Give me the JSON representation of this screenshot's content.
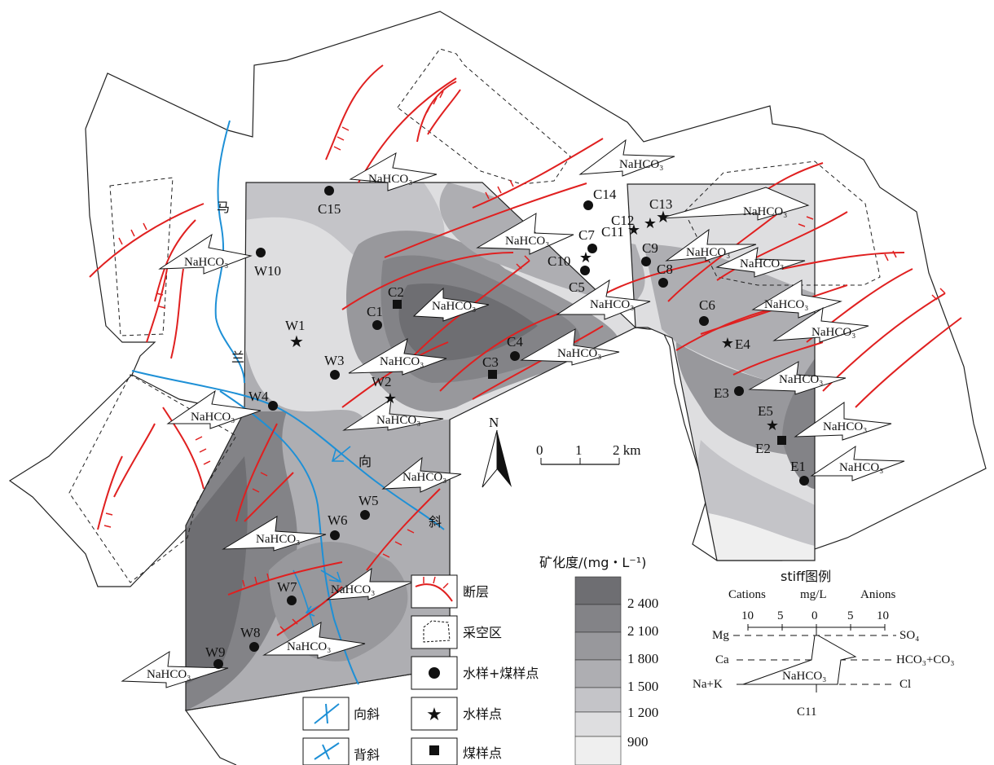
{
  "legend": {
    "fault": "断层",
    "goaf": "采空区",
    "water_coal": "水样+煤样点",
    "water": "水样点",
    "syncline": "向斜",
    "coal": "煤样点",
    "anticline": "背斜"
  },
  "colorbar": {
    "title": "矿化度/(mg・L⁻¹)",
    "ticks": [
      "2 400",
      "2 100",
      "1 800",
      "1 500",
      "1 200",
      "900"
    ],
    "colors": [
      "#6e6e72",
      "#838387",
      "#98989c",
      "#aeaeb2",
      "#c4c4c8",
      "#dedee0",
      "#efefef"
    ]
  },
  "scale": {
    "labels": [
      "0",
      "1",
      "2 km"
    ]
  },
  "north": "N",
  "river_name": [
    "马",
    "兰"
  ],
  "syncline_name": [
    "向",
    "斜"
  ],
  "stiff": {
    "title": "stiff图例",
    "cations": "Cations",
    "unit": "mg/L",
    "anions": "Anions",
    "ticks": [
      "10",
      "5",
      "0",
      "5",
      "10"
    ],
    "left_ions": [
      "Mg",
      "Ca",
      "Na+K"
    ],
    "right_ions": [
      "SO₄",
      "HCO₃+CO₃",
      "Cl"
    ],
    "water_type": "NaHCO₃",
    "sample": "C11"
  },
  "water_type_label": "NaHCO₃",
  "samples": {
    "water_coal": [
      "C15",
      "W10",
      "C14",
      "C7",
      "C9",
      "C8",
      "C6",
      "C5",
      "C1",
      "W3",
      "W4",
      "C4",
      "E3",
      "E1",
      "W5",
      "W6",
      "W7",
      "W8",
      "W9"
    ],
    "water": [
      "C13",
      "C12",
      "C11",
      "C10",
      "W1",
      "W2",
      "E4",
      "E5"
    ],
    "coal": [
      "C2",
      "C3",
      "E2"
    ]
  }
}
